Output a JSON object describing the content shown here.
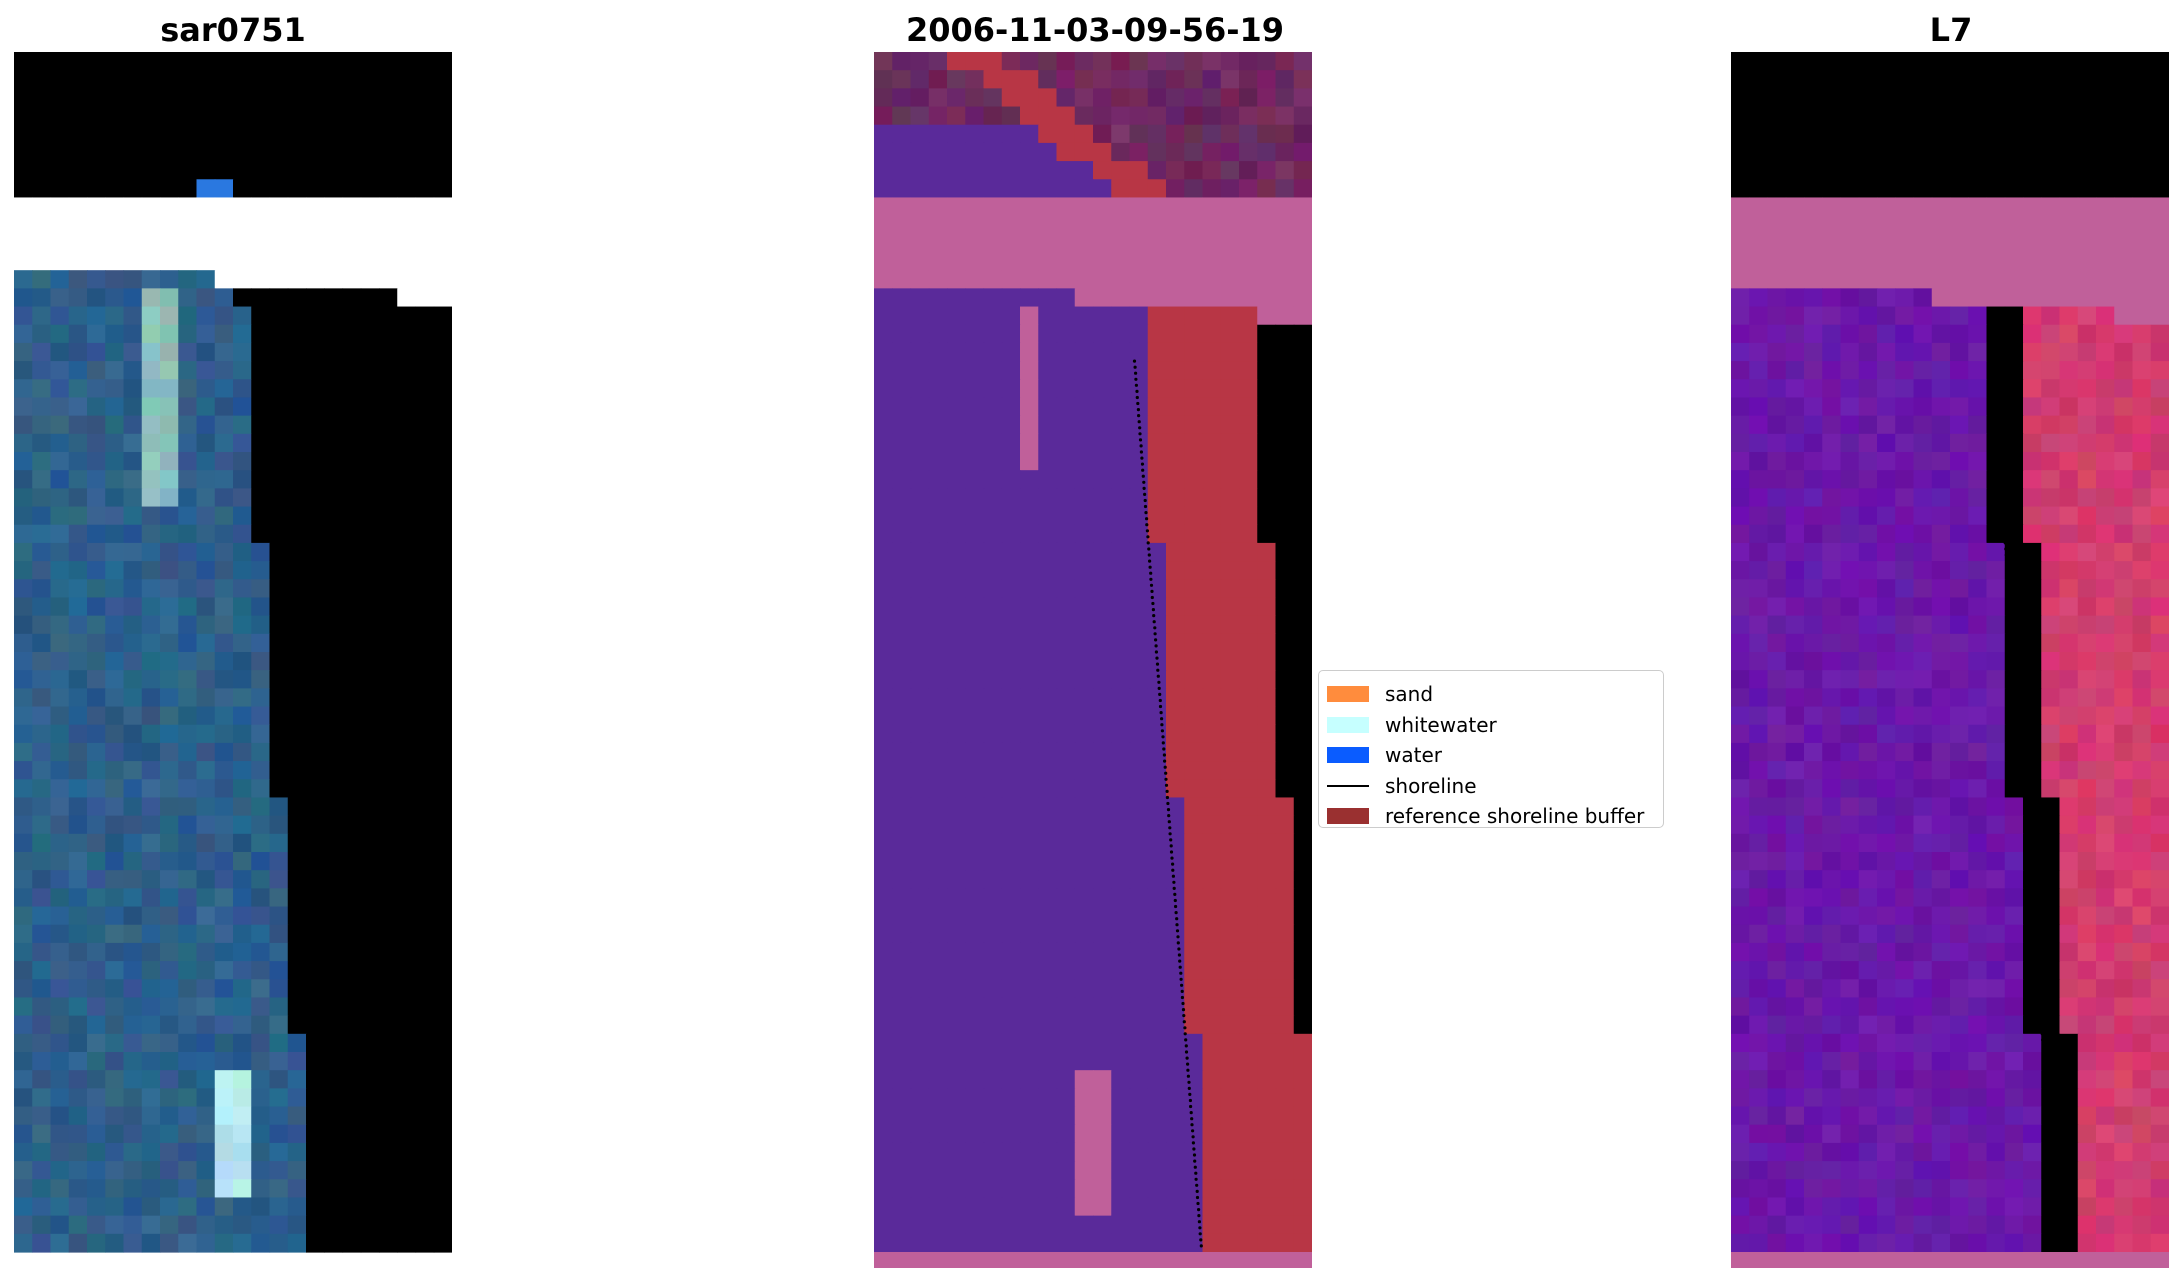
{
  "panels": [
    {
      "title": "sar0751",
      "kind": "rgb"
    },
    {
      "title": "2006-11-03-09-56-19",
      "kind": "classified"
    },
    {
      "title": "L7",
      "kind": "index"
    }
  ],
  "legend": {
    "items": [
      {
        "label": "sand",
        "color": "#ff8c3d",
        "type": "patch"
      },
      {
        "label": "whitewater",
        "color": "#c6ffff",
        "type": "patch"
      },
      {
        "label": "water",
        "color": "#0a5cff",
        "type": "patch"
      },
      {
        "label": "shoreline",
        "color": "#000000",
        "type": "line"
      },
      {
        "label": "reference shoreline buffer",
        "color": "#9a3030",
        "type": "patch"
      }
    ]
  },
  "colors": {
    "rgb_ocean": "#2e5f8a",
    "rgb_surf": "#e8ecd6",
    "rgb_cloud": "#aab4c6",
    "class_water": "#5a2a9a",
    "class_buffer": "#b83645",
    "class_land": "#6e2a5e",
    "class_nodata": "#c0609a",
    "index_low": "#6a18a8",
    "index_high": "#d23c6e",
    "index_nodata": "#c0609a"
  }
}
